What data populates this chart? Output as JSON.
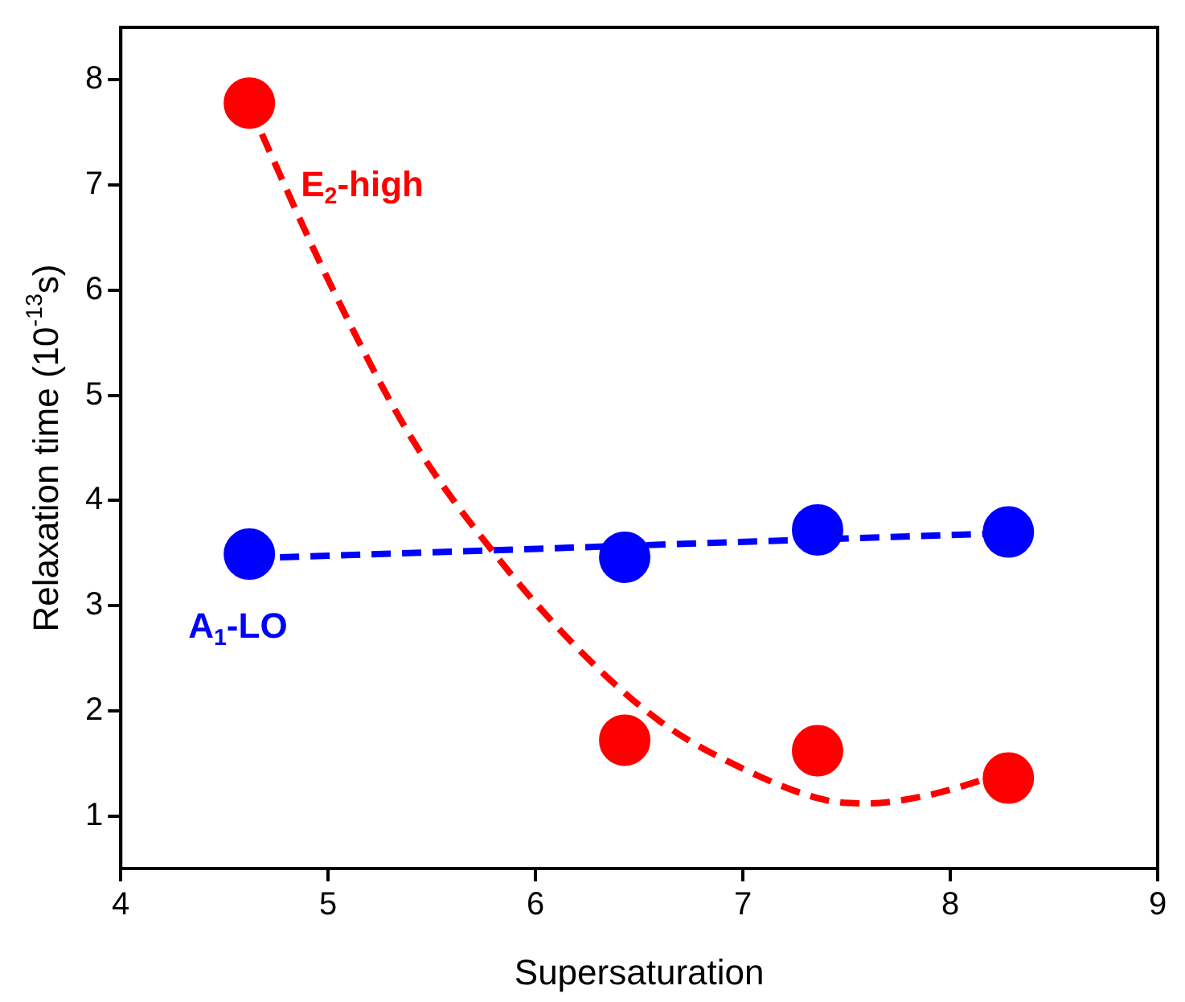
{
  "chart_data": {
    "type": "scatter",
    "xlabel": "Supersaturation",
    "ylabel": "Relaxation time (10$^{-13}$s)",
    "xlim": [
      4,
      9
    ],
    "xticks": [
      4,
      5,
      6,
      7,
      8,
      9
    ],
    "ylim": [
      0.5,
      8.5
    ],
    "yticks": [
      1,
      2,
      3,
      4,
      5,
      6,
      7,
      8
    ],
    "grid": false,
    "legend": false,
    "marker": "circle",
    "series": [
      {
        "name": "E$_{2}$-high",
        "color": "#ff0000",
        "x": [
          4.62,
          6.43,
          7.36,
          8.28
        ],
        "values": [
          7.78,
          1.72,
          1.62,
          1.36
        ]
      },
      {
        "name": "A$_{1}$-LO",
        "color": "#0000ff",
        "x": [
          4.62,
          6.43,
          7.36,
          8.28
        ],
        "values": [
          3.49,
          3.46,
          3.72,
          3.7
        ]
      },
      {
        "type": "line",
        "color": "#ff0000",
        "line_style": "dashed",
        "marker": "none",
        "x": [
          4.62,
          5.0,
          5.4,
          5.8,
          6.2,
          6.6,
          7.0,
          7.4,
          7.6,
          7.9,
          8.28
        ],
        "values": [
          7.75,
          6.1,
          4.6,
          3.5,
          2.6,
          1.9,
          1.45,
          1.15,
          1.12,
          1.2,
          1.42
        ]
      },
      {
        "type": "line",
        "color": "#0000ff",
        "line_style": "dashed",
        "marker": "none",
        "x": [
          4.62,
          8.28
        ],
        "values": [
          3.45,
          3.69
        ]
      }
    ]
  }
}
